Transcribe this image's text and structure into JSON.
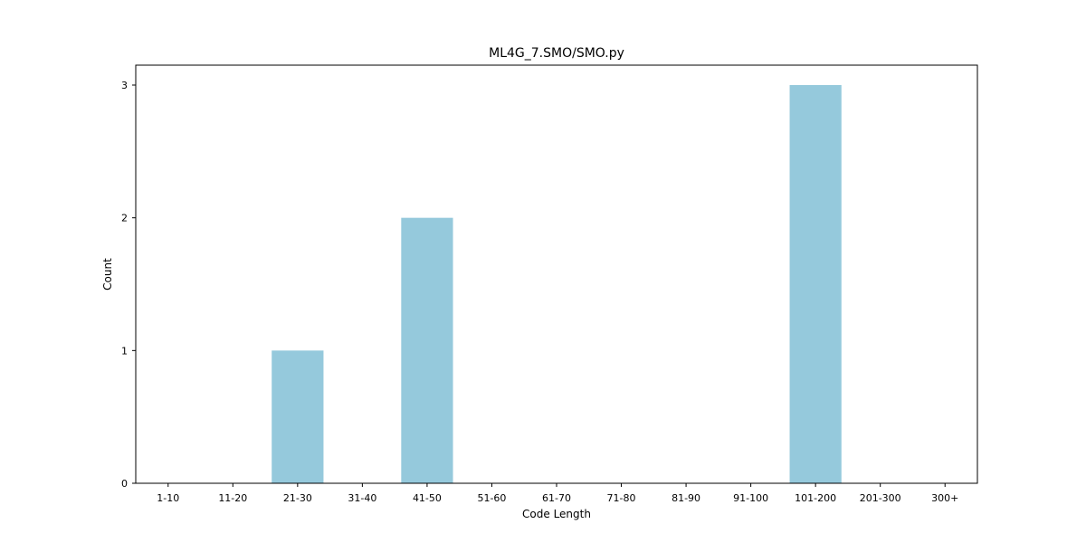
{
  "chart_data": {
    "type": "bar",
    "title": "ML4G_7.SMO/SMO.py",
    "xlabel": "Code Length",
    "ylabel": "Count",
    "categories": [
      "1-10",
      "11-20",
      "21-30",
      "31-40",
      "41-50",
      "51-60",
      "61-70",
      "71-80",
      "81-90",
      "91-100",
      "101-200",
      "201-300",
      "300+"
    ],
    "values": [
      0,
      0,
      1,
      0,
      2,
      0,
      0,
      0,
      0,
      0,
      3,
      0,
      0
    ],
    "ylim": [
      0,
      3.15
    ],
    "yticks": [
      0,
      1,
      2,
      3
    ],
    "grid": false,
    "bar_color": "#95c9dc",
    "axis_color": "#000000"
  }
}
